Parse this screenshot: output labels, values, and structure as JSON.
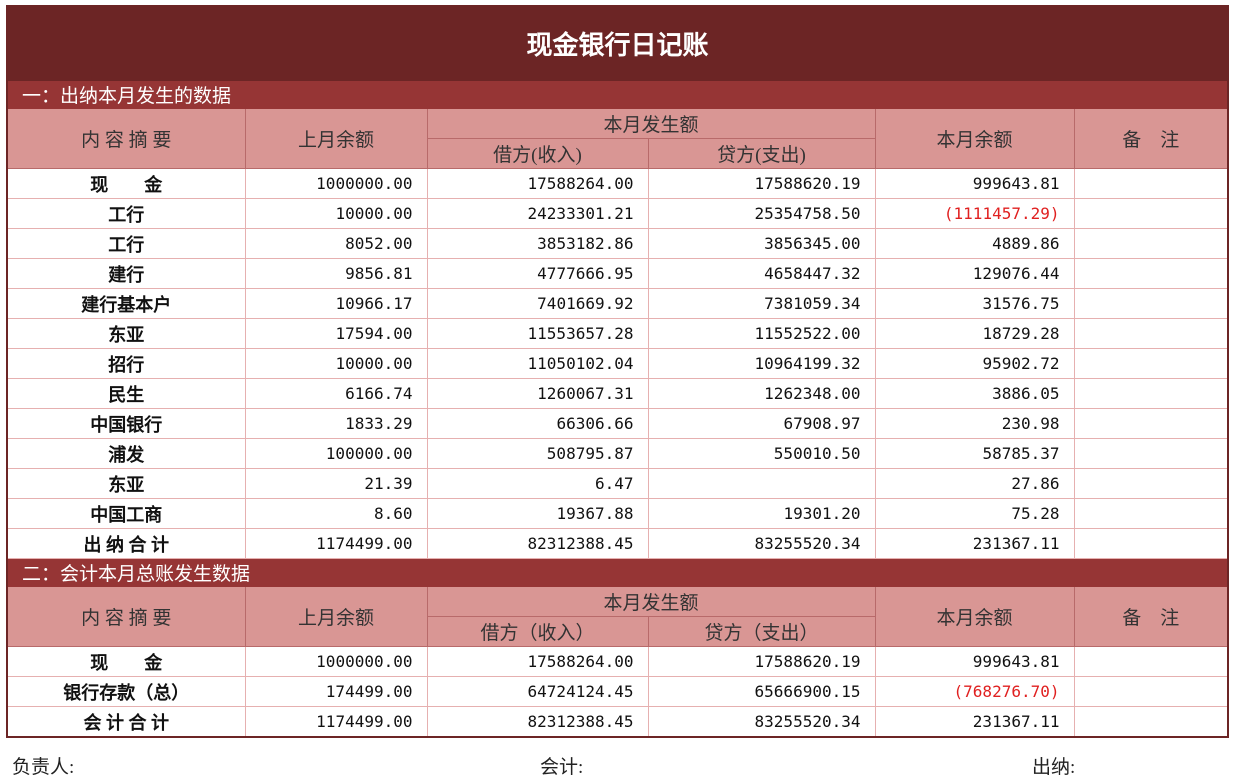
{
  "title": "现金银行日记账",
  "sections": [
    {
      "heading": "一：出纳本月发生的数据",
      "header": {
        "desc": "内 容 摘 要",
        "prev": "上月余额",
        "current": "本月发生额",
        "debit": "借方(收入)",
        "credit": "贷方(支出)",
        "balance": "本月余额",
        "note": "备　注"
      },
      "rows": [
        [
          "现　　金",
          "1000000.00",
          "17588264.00",
          "17588620.19",
          "999643.81"
        ],
        [
          "工行",
          "10000.00",
          "24233301.21",
          "25354758.50",
          "(1111457.29)"
        ],
        [
          "工行",
          "8052.00",
          "3853182.86",
          "3856345.00",
          "4889.86"
        ],
        [
          "建行",
          "9856.81",
          "4777666.95",
          "4658447.32",
          "129076.44"
        ],
        [
          "建行基本户",
          "10966.17",
          "7401669.92",
          "7381059.34",
          "31576.75"
        ],
        [
          "东亚",
          "17594.00",
          "11553657.28",
          "11552522.00",
          "18729.28"
        ],
        [
          "招行",
          "10000.00",
          "11050102.04",
          "10964199.32",
          "95902.72"
        ],
        [
          "民生",
          "6166.74",
          "1260067.31",
          "1262348.00",
          "3886.05"
        ],
        [
          "中国银行",
          "1833.29",
          "66306.66",
          "67908.97",
          "230.98"
        ],
        [
          "浦发",
          "100000.00",
          "508795.87",
          "550010.50",
          "58785.37"
        ],
        [
          "东亚",
          "21.39",
          "6.47",
          null,
          "27.86"
        ],
        [
          "中国工商",
          "8.60",
          "19367.88",
          "19301.20",
          "75.28"
        ],
        [
          "出 纳 合 计",
          "1174499.00",
          "82312388.45",
          "83255520.34",
          "231367.11"
        ]
      ]
    },
    {
      "heading": "二：会计本月总账发生数据",
      "header": {
        "desc": "内 容 摘 要",
        "prev": "上月余额",
        "current": "本月发生额",
        "debit": "借方（收入）",
        "credit": "贷方（支出）",
        "balance": "本月余额",
        "note": "备　注"
      },
      "rows": [
        [
          "现　　金",
          "1000000.00",
          "17588264.00",
          "17588620.19",
          "999643.81"
        ],
        [
          "银行存款（总）",
          "174499.00",
          "64724124.45",
          "65666900.15",
          "(768276.70)"
        ],
        [
          "会 计 合 计",
          "1174499.00",
          "82312388.45",
          "83255520.34",
          "231367.11"
        ]
      ]
    }
  ],
  "footer": {
    "manager": "负责人:",
    "accountant": "会计:",
    "cashier": "出纳:"
  }
}
